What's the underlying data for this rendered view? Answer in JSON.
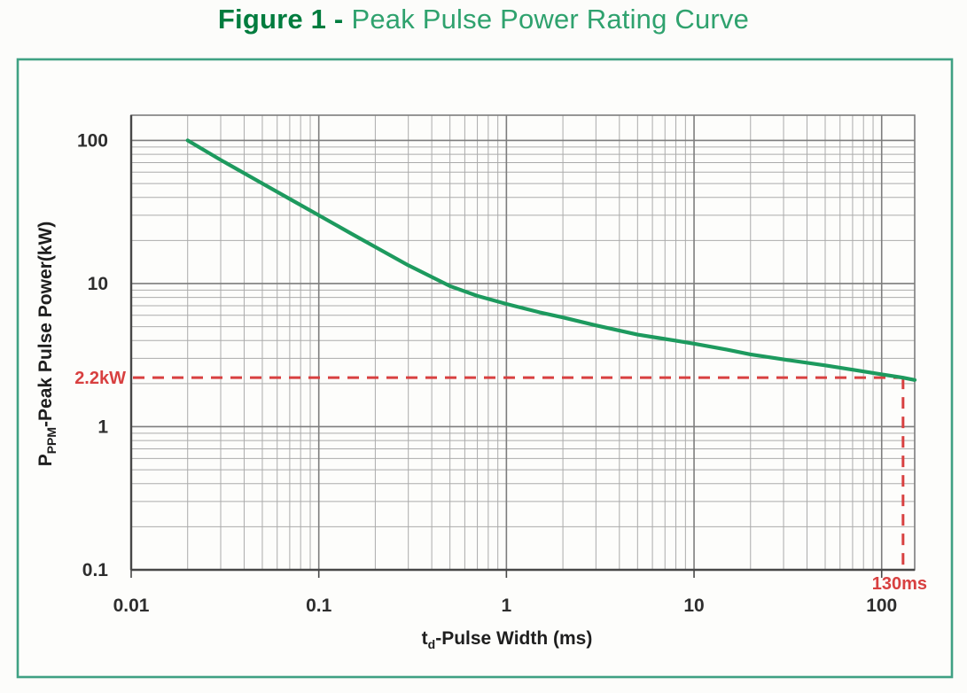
{
  "figure_title": {
    "prefix": "Figure 1 -",
    "text": "Peak Pulse Power Rating Curve"
  },
  "chart_data": {
    "type": "line",
    "title": "Peak Pulse Power Rating Curve",
    "x_scale": "log",
    "y_scale": "log",
    "xlim": [
      0.01,
      150
    ],
    "ylim": [
      0.1,
      150
    ],
    "grid": true,
    "legend_position": "none",
    "xlabel": {
      "pre": "t",
      "sub": "d",
      "rest": "-Pulse Width (ms)"
    },
    "ylabel": {
      "pre": "P",
      "sub": "PPM",
      "rest": "-Peak Pulse Power(kW)"
    },
    "x_ticks": [
      {
        "v": 0.01,
        "label": "0.01"
      },
      {
        "v": 0.1,
        "label": "0.1"
      },
      {
        "v": 1,
        "label": "1"
      },
      {
        "v": 10,
        "label": "10"
      },
      {
        "v": 100,
        "label": "100"
      }
    ],
    "y_ticks": [
      {
        "v": 100,
        "label": "100"
      },
      {
        "v": 10,
        "label": "10"
      },
      {
        "v": 1,
        "label": "1"
      },
      {
        "v": 0.1,
        "label": "0.1"
      }
    ],
    "series": [
      {
        "name": "peak-pulse-power-rating",
        "color": "#1d9a5e",
        "points": [
          [
            0.02,
            100
          ],
          [
            0.03,
            73
          ],
          [
            0.05,
            50
          ],
          [
            0.07,
            39
          ],
          [
            0.1,
            30
          ],
          [
            0.15,
            22.2
          ],
          [
            0.2,
            18
          ],
          [
            0.3,
            13.4
          ],
          [
            0.5,
            9.6
          ],
          [
            0.7,
            8.2
          ],
          [
            1,
            7.2
          ],
          [
            1.5,
            6.3
          ],
          [
            2,
            5.8
          ],
          [
            3,
            5.1
          ],
          [
            5,
            4.4
          ],
          [
            7,
            4.1
          ],
          [
            10,
            3.8
          ],
          [
            15,
            3.45
          ],
          [
            20,
            3.2
          ],
          [
            30,
            2.95
          ],
          [
            50,
            2.68
          ],
          [
            70,
            2.5
          ],
          [
            100,
            2.32
          ],
          [
            130,
            2.2
          ],
          [
            150,
            2.12
          ]
        ]
      }
    ],
    "markers": {
      "power_label": "2.2kW",
      "power_value": 2.2,
      "time_label": "130ms",
      "time_value": 130,
      "color": "#d84040"
    }
  },
  "colors": {
    "frame": "#3fa183",
    "grid_minor": "#ababab",
    "grid_major": "#7d7d7d",
    "axis": "#474747",
    "curve": "#1d9a5e",
    "marker": "#d84040",
    "title_prefix": "#007c3e",
    "title_main": "#2fa26e"
  }
}
